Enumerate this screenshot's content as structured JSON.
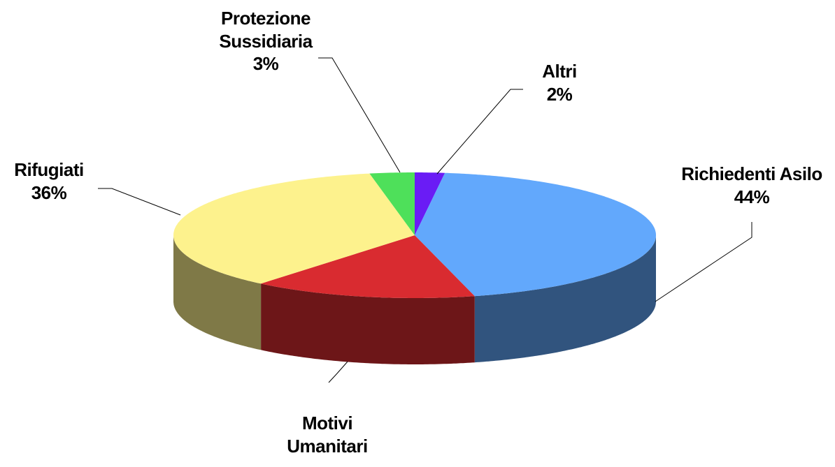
{
  "chart_data": {
    "type": "pie3d",
    "categories": [
      "Altri",
      "Richiedenti Asilo",
      "Motivi Umanitari",
      "Rifugiati",
      "Protezione Sussidiaria"
    ],
    "values": [
      2,
      44,
      15,
      36,
      3
    ],
    "value_labels": [
      "2%",
      "44%",
      null,
      "36%",
      "3%"
    ],
    "colors": [
      "#6a1cf5",
      "#62a8fc",
      "#d92b30",
      "#fdf28d",
      "#4ee05a"
    ]
  }
}
